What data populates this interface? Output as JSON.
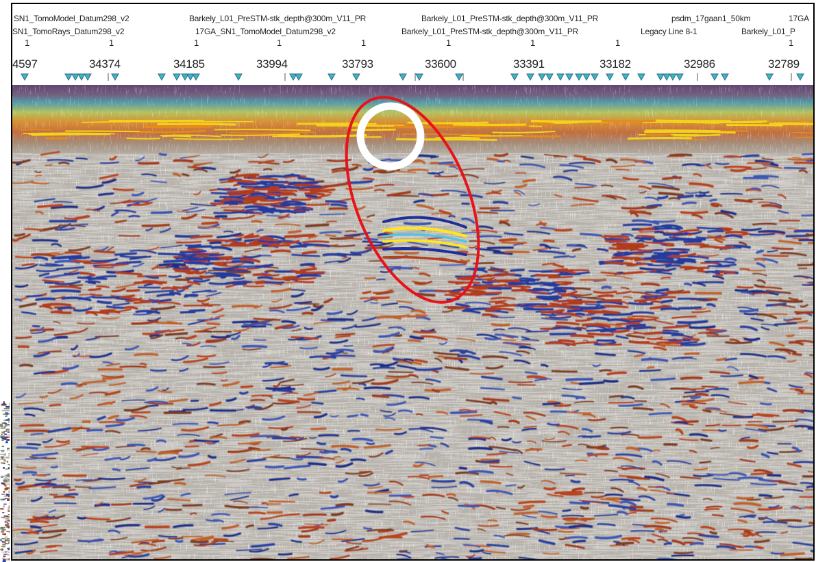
{
  "header": {
    "row1": [
      "SN1_TomoModel_Datum298_v2",
      "Barkely_L01_PreSTM-stk_depth@300m_V11_PR",
      "Barkely_L01_PreSTM-stk_depth@300m_V11_PR",
      "psdm_17gaan1_50km",
      "17GA"
    ],
    "row2": [
      "SN1_TomoRays_Datum298_v2",
      "17GA_SN1_TomoModel_Datum298_v2",
      "Barkely_L01_PreSTM-stk_depth@300m_V11_PR",
      "Legacy Line 8-1",
      "Barkely_L01_P"
    ],
    "track_marks": [
      "1",
      "1",
      "1",
      "1",
      "1",
      "1",
      "1",
      "1",
      "1"
    ],
    "cdp_labels": [
      "4597",
      "34374",
      "34185",
      "33994",
      "33793",
      "33600",
      "33391",
      "33182",
      "32986",
      "32789"
    ]
  },
  "colors": {
    "red_ellipse": "#e8121a",
    "white_circle": "#ffffff",
    "marker_fill": "#3fb3c8",
    "marker_stroke": "#2a6d80"
  },
  "annotations": {
    "ellipse": "red-highlight-ellipse",
    "circle": "white-highlight-circle"
  }
}
